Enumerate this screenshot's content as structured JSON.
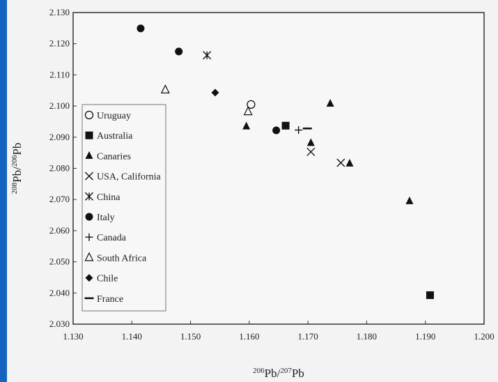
{
  "chart_data": {
    "type": "scatter",
    "xlabel": {
      "sup": "206",
      "base": "Pb/",
      "sup2": "207",
      "base2": "Pb"
    },
    "ylabel": {
      "sup": "208",
      "base": "Pb/",
      "sup2": "206",
      "base2": "Pb"
    },
    "xlim": [
      1.13,
      1.2
    ],
    "ylim": [
      2.03,
      2.13
    ],
    "xticks": [
      "1.130",
      "1.140",
      "1.150",
      "1.160",
      "1.170",
      "1.180",
      "1.190",
      "1.200"
    ],
    "yticks": [
      "2.030",
      "2.040",
      "2.050",
      "2.060",
      "2.070",
      "2.080",
      "2.090",
      "2.100",
      "2.110",
      "2.120",
      "2.130"
    ],
    "grid": false,
    "legend_position": "left",
    "series": [
      {
        "name": "Uruguay",
        "marker": "open-circle",
        "points": [
          [
            1.1603,
            2.1005
          ]
        ]
      },
      {
        "name": "Australia",
        "marker": "filled-square",
        "points": [
          [
            1.1662,
            2.0937
          ],
          [
            1.1908,
            2.0393
          ]
        ]
      },
      {
        "name": "Canaries",
        "marker": "filled-triangle",
        "points": [
          [
            1.1595,
            2.0935
          ],
          [
            1.1705,
            2.0882
          ],
          [
            1.1738,
            2.1008
          ],
          [
            1.1771,
            2.0816
          ],
          [
            1.1873,
            2.0695
          ]
        ]
      },
      {
        "name": "USA, California",
        "marker": "x",
        "points": [
          [
            1.1705,
            2.0853
          ],
          [
            1.1756,
            2.0818
          ]
        ]
      },
      {
        "name": "China",
        "marker": "asterisk",
        "points": [
          [
            1.1528,
            2.1163
          ]
        ]
      },
      {
        "name": "Italy",
        "marker": "filled-circle",
        "points": [
          [
            1.1415,
            2.1249
          ],
          [
            1.148,
            2.1175
          ],
          [
            1.1646,
            2.0922
          ]
        ]
      },
      {
        "name": "Canada",
        "marker": "plus",
        "points": [
          [
            1.1684,
            2.0923
          ]
        ]
      },
      {
        "name": "South Africa",
        "marker": "open-triangle",
        "points": [
          [
            1.1457,
            2.1052
          ],
          [
            1.1598,
            2.0982
          ]
        ]
      },
      {
        "name": "Chile",
        "marker": "filled-diamond",
        "points": [
          [
            1.1542,
            2.1043
          ]
        ]
      },
      {
        "name": "France",
        "marker": "dash",
        "points": [
          [
            1.1699,
            2.0928
          ]
        ]
      }
    ]
  }
}
